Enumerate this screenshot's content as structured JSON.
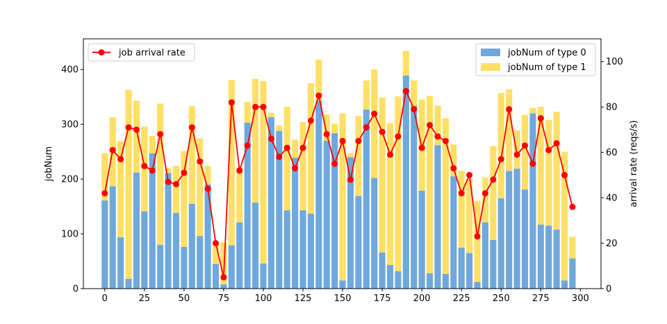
{
  "chart_data": {
    "type": "bar",
    "x": [
      0,
      5,
      10,
      15,
      20,
      25,
      30,
      35,
      40,
      45,
      50,
      55,
      60,
      65,
      70,
      75,
      80,
      85,
      90,
      95,
      100,
      105,
      110,
      115,
      120,
      125,
      130,
      135,
      140,
      145,
      150,
      155,
      160,
      165,
      170,
      175,
      180,
      185,
      190,
      195,
      200,
      205,
      210,
      215,
      220,
      225,
      230,
      235,
      240,
      245,
      250,
      255,
      260,
      265,
      270,
      275,
      280,
      285,
      290,
      295
    ],
    "xticks": [
      0,
      25,
      50,
      75,
      100,
      125,
      150,
      175,
      200,
      225,
      250,
      275,
      300
    ],
    "xlim": [
      -13.5,
      313
    ],
    "ylabel": "jobNum",
    "y2label": "arrival rate (reqs/s)",
    "ylim": [
      0,
      456
    ],
    "y2lim": [
      0,
      110
    ],
    "yticks": [
      0,
      100,
      200,
      300,
      400
    ],
    "y2ticks": [
      0,
      20,
      40,
      60,
      80,
      100
    ],
    "series": [
      {
        "name": "jobNum of type 0",
        "color": "#6fa8dc",
        "axis": "left",
        "kind": "bar",
        "values": [
          161,
          187,
          94,
          18,
          212,
          141,
          247,
          80,
          211,
          138,
          76,
          155,
          96,
          190,
          45,
          8,
          79,
          121,
          303,
          157,
          46,
          313,
          288,
          143,
          239,
          143,
          137,
          343,
          270,
          284,
          15,
          240,
          169,
          327,
          202,
          66,
          43,
          32,
          389,
          334,
          179,
          28,
          262,
          27,
          205,
          75,
          65,
          12,
          121,
          89,
          165,
          215,
          219,
          181,
          320,
          117,
          115,
          108,
          15,
          55
        ]
      },
      {
        "name": "jobNum of type 1",
        "color": "#ffe066",
        "axis": "left",
        "kind": "bar-stacked",
        "values": [
          86,
          126,
          175,
          345,
          131,
          155,
          32,
          258,
          9,
          86,
          175,
          178,
          178,
          34,
          40,
          76,
          302,
          100,
          38,
          226,
          333,
          8,
          10,
          189,
          33,
          161,
          238,
          75,
          48,
          17,
          305,
          7,
          146,
          53,
          198,
          283,
          259,
          319,
          45,
          46,
          166,
          324,
          72,
          284,
          58,
          140,
          136,
          148,
          82,
          171,
          192,
          149,
          70,
          136,
          10,
          215,
          193,
          215,
          235,
          40
        ]
      },
      {
        "name": "job arrival rate",
        "color": "#ff0000",
        "axis": "right",
        "kind": "line",
        "values": [
          42,
          61,
          57,
          71,
          70,
          54,
          52,
          68,
          47,
          46,
          51,
          71,
          56,
          44,
          20,
          5,
          82,
          52,
          63,
          80,
          80,
          66,
          58,
          62,
          53,
          62,
          74,
          85,
          68,
          55,
          65,
          48,
          65,
          71,
          77,
          69,
          59,
          67,
          87,
          79,
          62,
          72,
          67,
          65,
          53,
          42,
          50,
          23,
          42,
          48,
          57,
          79,
          59,
          63,
          55,
          75,
          61,
          64,
          50,
          36
        ]
      }
    ],
    "legend_left": "upper-left",
    "legend_right": "upper-right"
  }
}
